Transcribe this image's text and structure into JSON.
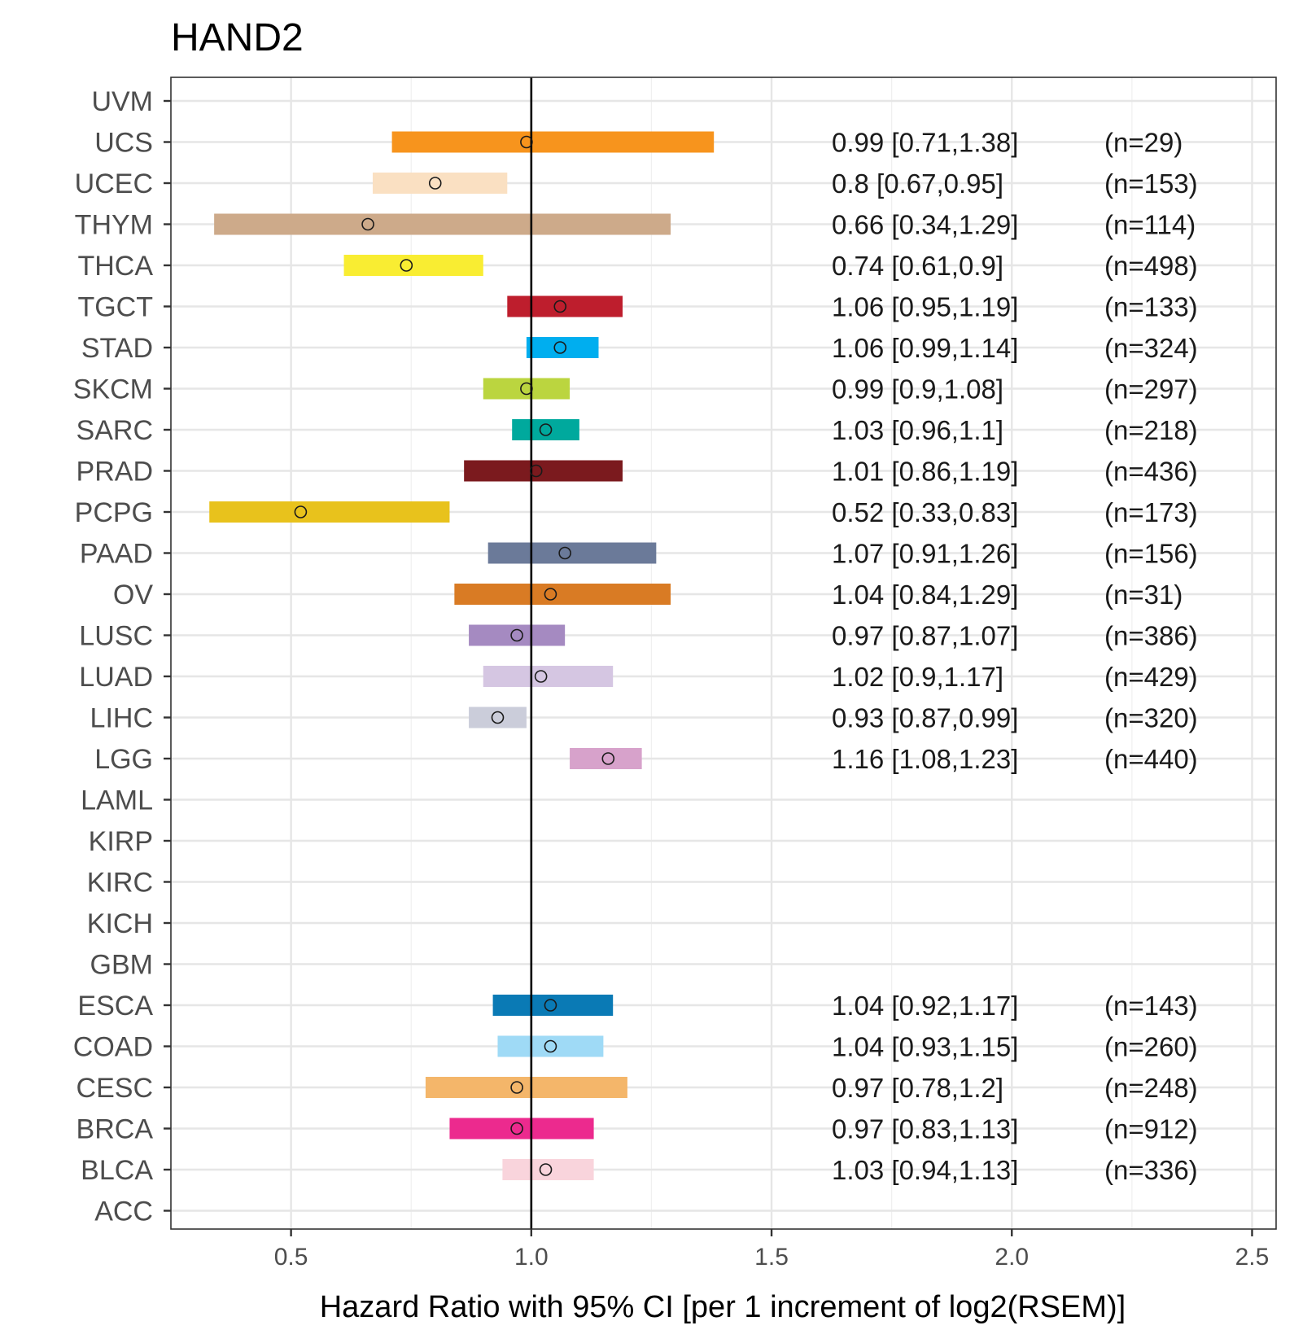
{
  "chart_data": {
    "type": "forest",
    "title": "HAND2",
    "xlabel": "Hazard Ratio with 95% CI [per 1 increment of log2(RSEM)]",
    "ylabel": "",
    "xlim": [
      0.25,
      2.55
    ],
    "x_ticks": [
      0.5,
      1.0,
      1.5,
      2.0,
      2.5
    ],
    "x_tick_labels": [
      "0.5",
      "1.0",
      "1.5",
      "2.0",
      "2.5"
    ],
    "reference_line": 1.0,
    "categories": [
      "UVM",
      "UCS",
      "UCEC",
      "THYM",
      "THCA",
      "TGCT",
      "STAD",
      "SKCM",
      "SARC",
      "PRAD",
      "PCPG",
      "PAAD",
      "OV",
      "LUSC",
      "LUAD",
      "LIHC",
      "LGG",
      "LAML",
      "KIRP",
      "KIRC",
      "KICH",
      "GBM",
      "ESCA",
      "COAD",
      "CESC",
      "BRCA",
      "BLCA",
      "ACC"
    ],
    "rows": [
      {
        "cancer": "UVM"
      },
      {
        "cancer": "UCS",
        "hr": 0.99,
        "lo": 0.71,
        "hi": 1.38,
        "label": "0.99 [0.71,1.38]",
        "n": "(n=29)",
        "color": "#F7941D"
      },
      {
        "cancer": "UCEC",
        "hr": 0.8,
        "lo": 0.67,
        "hi": 0.95,
        "label": "0.8 [0.67,0.95]",
        "n": "(n=153)",
        "color": "#FAE0C2"
      },
      {
        "cancer": "THYM",
        "hr": 0.66,
        "lo": 0.34,
        "hi": 1.29,
        "label": "0.66 [0.34,1.29]",
        "n": "(n=114)",
        "color": "#CDAA8A"
      },
      {
        "cancer": "THCA",
        "hr": 0.74,
        "lo": 0.61,
        "hi": 0.9,
        "label": "0.74 [0.61,0.9]",
        "n": "(n=498)",
        "color": "#F9ED32"
      },
      {
        "cancer": "TGCT",
        "hr": 1.06,
        "lo": 0.95,
        "hi": 1.19,
        "label": "1.06 [0.95,1.19]",
        "n": "(n=133)",
        "color": "#BE1E2D"
      },
      {
        "cancer": "STAD",
        "hr": 1.06,
        "lo": 0.99,
        "hi": 1.14,
        "label": "1.06 [0.99,1.14]",
        "n": "(n=324)",
        "color": "#00AEEF"
      },
      {
        "cancer": "SKCM",
        "hr": 0.99,
        "lo": 0.9,
        "hi": 1.08,
        "label": "0.99 [0.9,1.08]",
        "n": "(n=297)",
        "color": "#BBD53F"
      },
      {
        "cancer": "SARC",
        "hr": 1.03,
        "lo": 0.96,
        "hi": 1.1,
        "label": "1.03 [0.96,1.1]",
        "n": "(n=218)",
        "color": "#00A99D"
      },
      {
        "cancer": "PRAD",
        "hr": 1.01,
        "lo": 0.86,
        "hi": 1.19,
        "label": "1.01 [0.86,1.19]",
        "n": "(n=436)",
        "color": "#7B1A1E"
      },
      {
        "cancer": "PCPG",
        "hr": 0.52,
        "lo": 0.33,
        "hi": 0.83,
        "label": "0.52 [0.33,0.83]",
        "n": "(n=173)",
        "color": "#E8C21C"
      },
      {
        "cancer": "PAAD",
        "hr": 1.07,
        "lo": 0.91,
        "hi": 1.26,
        "label": "1.07 [0.91,1.26]",
        "n": "(n=156)",
        "color": "#6B7A99"
      },
      {
        "cancer": "OV",
        "hr": 1.04,
        "lo": 0.84,
        "hi": 1.29,
        "label": "1.04 [0.84,1.29]",
        "n": "(n=31)",
        "color": "#D97B24"
      },
      {
        "cancer": "LUSC",
        "hr": 0.97,
        "lo": 0.87,
        "hi": 1.07,
        "label": "0.97 [0.87,1.07]",
        "n": "(n=386)",
        "color": "#A58AC1"
      },
      {
        "cancer": "LUAD",
        "hr": 1.02,
        "lo": 0.9,
        "hi": 1.17,
        "label": "1.02 [0.9,1.17]",
        "n": "(n=429)",
        "color": "#D5C6E2"
      },
      {
        "cancer": "LIHC",
        "hr": 0.93,
        "lo": 0.87,
        "hi": 0.99,
        "label": "0.93 [0.87,0.99]",
        "n": "(n=320)",
        "color": "#CBCDDA"
      },
      {
        "cancer": "LGG",
        "hr": 1.16,
        "lo": 1.08,
        "hi": 1.23,
        "label": "1.16 [1.08,1.23]",
        "n": "(n=440)",
        "color": "#D7A2CB"
      },
      {
        "cancer": "LAML"
      },
      {
        "cancer": "KIRP"
      },
      {
        "cancer": "KIRC"
      },
      {
        "cancer": "KICH"
      },
      {
        "cancer": "GBM"
      },
      {
        "cancer": "ESCA",
        "hr": 1.04,
        "lo": 0.92,
        "hi": 1.17,
        "label": "1.04 [0.92,1.17]",
        "n": "(n=143)",
        "color": "#0A7AB5"
      },
      {
        "cancer": "COAD",
        "hr": 1.04,
        "lo": 0.93,
        "hi": 1.15,
        "label": "1.04 [0.93,1.15]",
        "n": "(n=260)",
        "color": "#9FDAF6"
      },
      {
        "cancer": "CESC",
        "hr": 0.97,
        "lo": 0.78,
        "hi": 1.2,
        "label": "0.97 [0.78,1.2]",
        "n": "(n=248)",
        "color": "#F4B66A"
      },
      {
        "cancer": "BRCA",
        "hr": 0.97,
        "lo": 0.83,
        "hi": 1.13,
        "label": "0.97 [0.83,1.13]",
        "n": "(n=912)",
        "color": "#EC2A8E"
      },
      {
        "cancer": "BLCA",
        "hr": 1.03,
        "lo": 0.94,
        "hi": 1.13,
        "label": "1.03 [0.94,1.13]",
        "n": "(n=336)",
        "color": "#F9D4DC"
      },
      {
        "cancer": "ACC"
      }
    ],
    "grid": true,
    "legend": "none"
  }
}
